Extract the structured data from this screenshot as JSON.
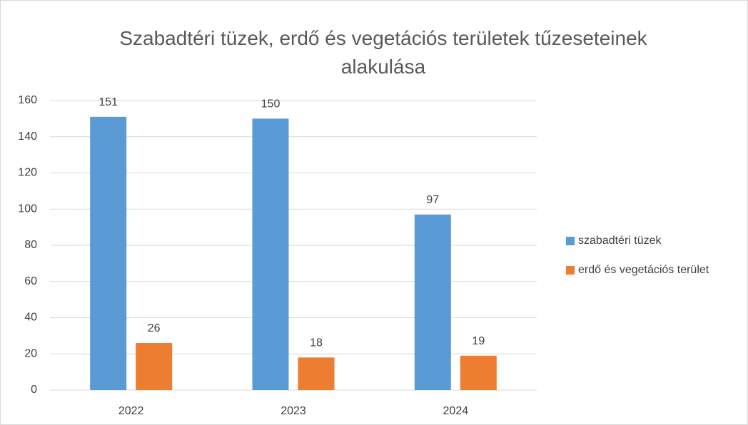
{
  "chart_data": {
    "type": "bar",
    "title": "Szabadtéri tüzek, erdő és vegetációs területek tűzeseteinek alakulása",
    "categories": [
      "2022",
      "2023",
      "2024"
    ],
    "series": [
      {
        "name": "szabadtéri tüzek",
        "color": "#5b9bd5",
        "values": [
          151,
          150,
          97
        ]
      },
      {
        "name": "erdő és vegetációs terület",
        "color": "#ed7d31",
        "values": [
          26,
          18,
          19
        ]
      }
    ],
    "ylim": [
      0,
      160
    ],
    "yticks": [
      0,
      20,
      40,
      60,
      80,
      100,
      120,
      140,
      160
    ],
    "grid": true,
    "legend": "right",
    "data_labels": true
  }
}
